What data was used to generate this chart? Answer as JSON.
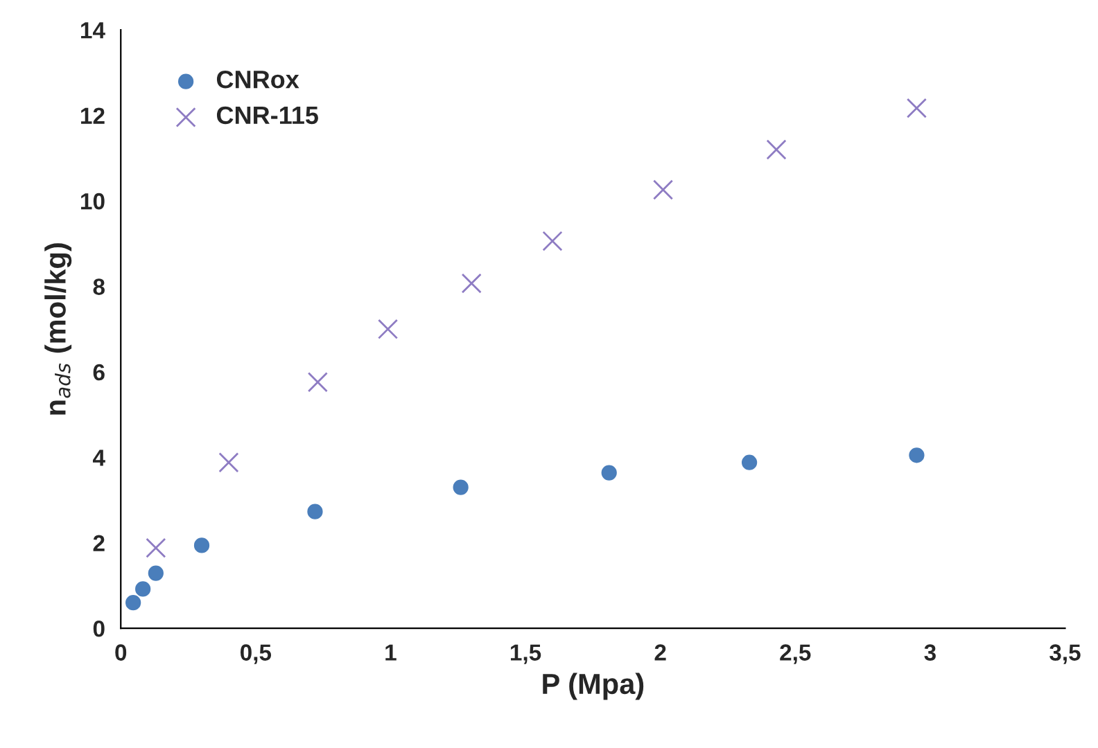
{
  "chart_data": {
    "type": "scatter",
    "xlabel": "P (Mpa)",
    "ylabel": "n$_{ads}$ (mol/kg)",
    "xlim": [
      0,
      3.5
    ],
    "ylim": [
      0,
      14
    ],
    "xticks": [
      0,
      {
        "value": 0.5,
        "label": "0,5"
      },
      1,
      {
        "value": 1.5,
        "label": "1,5"
      },
      2,
      {
        "value": 2.5,
        "label": "2,5"
      },
      3,
      {
        "value": 3.5,
        "label": "3,5"
      }
    ],
    "yticks": [
      0,
      2,
      4,
      6,
      8,
      10,
      12,
      14
    ],
    "grid": false,
    "legend": "top left",
    "series": [
      {
        "name": "CNRox",
        "color": "#4a7ebb",
        "marker": "circle",
        "x": [
          0.046,
          0.082,
          0.13,
          0.3,
          0.72,
          1.26,
          1.81,
          2.33,
          2.95
        ],
        "values": [
          0.6,
          0.92,
          1.29,
          1.94,
          2.73,
          3.3,
          3.64,
          3.88,
          4.05
        ]
      },
      {
        "name": "CNR-115",
        "color": "#8e7cc3",
        "marker": "cross",
        "x": [
          0.13,
          0.4,
          0.73,
          0.99,
          1.3,
          1.6,
          2.01,
          2.43,
          2.95
        ],
        "values": [
          1.88,
          3.88,
          5.76,
          7.0,
          8.07,
          9.06,
          10.26,
          11.2,
          12.17
        ]
      }
    ]
  }
}
